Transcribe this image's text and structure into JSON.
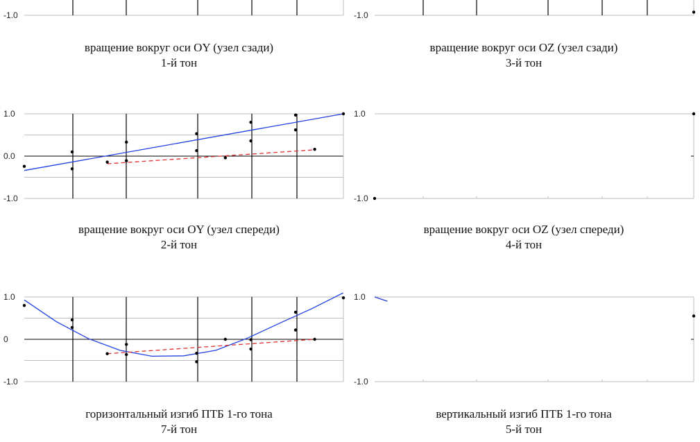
{
  "colors": {
    "fit_curve": "#1f3fe0",
    "trend_line": "#e03030",
    "grid": "#bdbdbd",
    "axis": "#000000",
    "points": "#000000"
  },
  "chart_data": [
    {
      "id": "oy-back",
      "type": "scatter",
      "tick_labels": [
        "-1.0"
      ],
      "ylim": [
        -1.0,
        1.0
      ],
      "caption": [
        "вращение вокруг оси OY (узел сзади)",
        "1-й тон"
      ],
      "fit": [],
      "trend": [],
      "points": []
    },
    {
      "id": "oz-back",
      "type": "scatter",
      "tick_labels": [
        "-1.0"
      ],
      "ylim": [
        -1.0,
        1.0
      ],
      "caption": [
        "вращение вокруг оси OZ (узел сзади)",
        "3-й тон"
      ],
      "fit": [],
      "trend": [],
      "points": [
        [
          1.0,
          -0.85
        ]
      ]
    },
    {
      "id": "oy-front",
      "type": "scatter",
      "tick_labels": [
        "1.0",
        "0.0",
        "-1.0"
      ],
      "ylim": [
        -1.0,
        1.0
      ],
      "caption": [
        "вращение вокруг оси OY (узел спереди)",
        "2-й тон"
      ],
      "fit": [
        [
          0.0,
          -0.34
        ],
        [
          1.0,
          1.0
        ]
      ],
      "trend": [
        [
          0.26,
          -0.18
        ],
        [
          0.91,
          0.15
        ]
      ],
      "points": [
        [
          0.0,
          -0.24
        ],
        [
          0.15,
          0.1
        ],
        [
          0.15,
          -0.3
        ],
        [
          0.26,
          -0.14
        ],
        [
          0.32,
          0.33
        ],
        [
          0.32,
          -0.11
        ],
        [
          0.54,
          0.53
        ],
        [
          0.54,
          0.13
        ],
        [
          0.63,
          -0.04
        ],
        [
          0.71,
          0.8
        ],
        [
          0.71,
          0.36
        ],
        [
          0.85,
          0.97
        ],
        [
          0.85,
          0.62
        ],
        [
          0.91,
          0.16
        ],
        [
          1.0,
          1.0
        ]
      ]
    },
    {
      "id": "oz-front",
      "type": "scatter",
      "tick_labels": [
        "1.0",
        "-1.0"
      ],
      "ylim": [
        -1.0,
        1.0
      ],
      "caption": [
        "вращение вокруг оси OZ (узел спереди)",
        "4-й тон"
      ],
      "fit": [],
      "trend": [],
      "points": [
        [
          0.0,
          -1.0
        ],
        [
          1.0,
          1.0
        ]
      ]
    },
    {
      "id": "horizontal-bend",
      "type": "scatter",
      "tick_labels": [
        "1.0",
        "0",
        "-1.0"
      ],
      "ylim": [
        -1.0,
        1.0
      ],
      "caption": [
        "горизонтальный изгиб ПТБ 1-го тона",
        "7-й тон"
      ],
      "fit": [
        [
          0.0,
          0.93
        ],
        [
          0.1,
          0.42
        ],
        [
          0.2,
          0.02
        ],
        [
          0.3,
          -0.26
        ],
        [
          0.4,
          -0.4
        ],
        [
          0.5,
          -0.39
        ],
        [
          0.6,
          -0.26
        ],
        [
          0.7,
          0.03
        ],
        [
          0.8,
          0.38
        ],
        [
          0.9,
          0.72
        ],
        [
          1.0,
          1.1
        ]
      ],
      "trend": [
        [
          0.26,
          -0.34
        ],
        [
          0.91,
          0.0
        ]
      ],
      "points": [
        [
          0.0,
          0.8
        ],
        [
          0.15,
          0.46
        ],
        [
          0.15,
          0.28
        ],
        [
          0.26,
          -0.34
        ],
        [
          0.32,
          -0.12
        ],
        [
          0.32,
          -0.36
        ],
        [
          0.54,
          -0.33
        ],
        [
          0.54,
          -0.53
        ],
        [
          0.63,
          0.0
        ],
        [
          0.71,
          -0.23
        ],
        [
          0.71,
          -0.01
        ],
        [
          0.85,
          0.64
        ],
        [
          0.85,
          0.22
        ],
        [
          0.91,
          0.0
        ],
        [
          1.0,
          0.98
        ]
      ]
    },
    {
      "id": "vertical-bend",
      "type": "scatter",
      "tick_labels": [
        "1.0",
        "-1.0"
      ],
      "ylim": [
        -1.0,
        1.0
      ],
      "caption": [
        "вертикальный изгиб ПТБ 1-го тона",
        "5-й тон"
      ],
      "fit": [
        [
          0.0,
          1.0
        ],
        [
          0.04,
          0.9
        ]
      ],
      "trend": [],
      "points": [
        [
          1.0,
          0.55
        ]
      ]
    }
  ]
}
